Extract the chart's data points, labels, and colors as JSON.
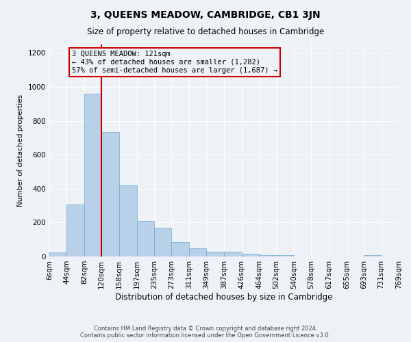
{
  "title": "3, QUEENS MEADOW, CAMBRIDGE, CB1 3JN",
  "subtitle": "Size of property relative to detached houses in Cambridge",
  "xlabel": "Distribution of detached houses by size in Cambridge",
  "ylabel": "Number of detached properties",
  "bin_edges": [
    6,
    44,
    82,
    120,
    158,
    197,
    235,
    273,
    311,
    349,
    387,
    426,
    464,
    502,
    540,
    578,
    617,
    655,
    693,
    731,
    769
  ],
  "bin_labels": [
    "6sqm",
    "44sqm",
    "82sqm",
    "120sqm",
    "158sqm",
    "197sqm",
    "235sqm",
    "273sqm",
    "311sqm",
    "349sqm",
    "387sqm",
    "426sqm",
    "464sqm",
    "502sqm",
    "540sqm",
    "578sqm",
    "617sqm",
    "655sqm",
    "693sqm",
    "731sqm",
    "769sqm"
  ],
  "bar_heights": [
    25,
    305,
    960,
    735,
    420,
    210,
    170,
    85,
    50,
    30,
    30,
    15,
    10,
    10,
    0,
    0,
    0,
    0,
    8,
    0
  ],
  "bar_color": "#b8d0e8",
  "bar_edgecolor": "#6aaad4",
  "property_bin_index": 3,
  "annotation_text": "3 QUEENS MEADOW: 121sqm\n← 43% of detached houses are smaller (1,282)\n57% of semi-detached houses are larger (1,687) →",
  "annotation_box_color": "#cc0000",
  "vline_color": "#cc0000",
  "ylim": [
    0,
    1250
  ],
  "yticks": [
    0,
    200,
    400,
    600,
    800,
    1000,
    1200
  ],
  "background_color": "#eef2f7",
  "grid_color": "#ffffff",
  "footer_line1": "Contains HM Land Registry data © Crown copyright and database right 2024.",
  "footer_line2": "Contains public sector information licensed under the Open Government Licence v3.0."
}
